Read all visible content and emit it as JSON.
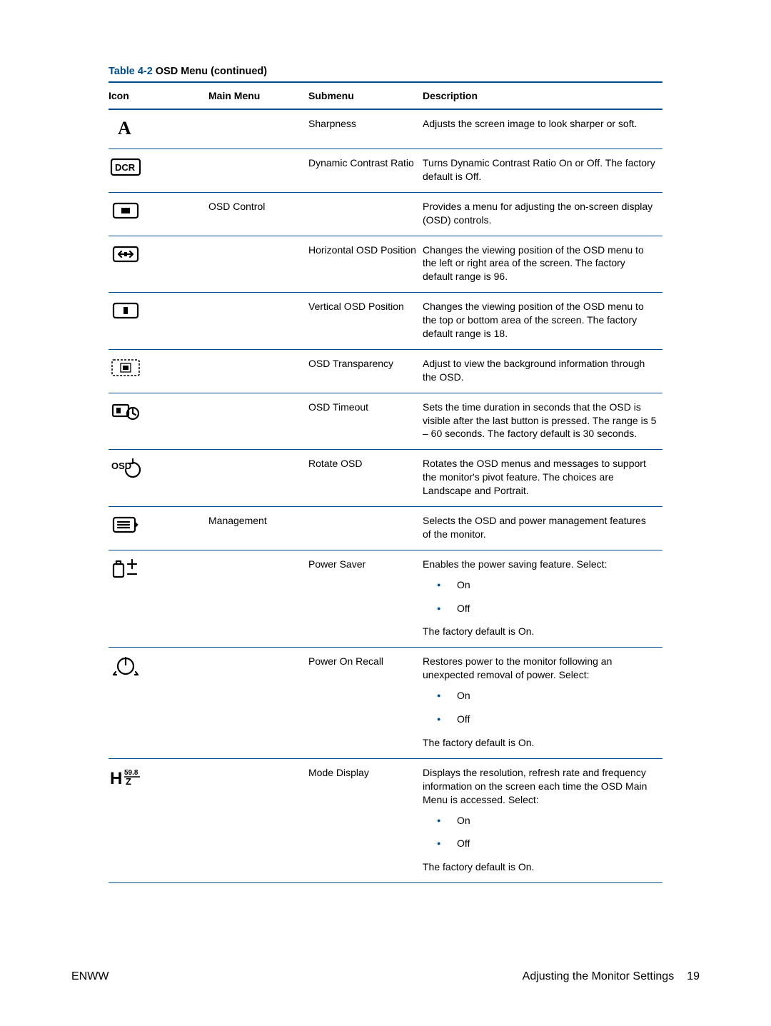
{
  "caption_prefix": "Table 4-2",
  "caption_title": "  OSD Menu (continued)",
  "colors": {
    "accent": "#004b8d"
  },
  "headers": {
    "icon": "Icon",
    "main": "Main Menu",
    "sub": "Submenu",
    "desc": "Description"
  },
  "rows": [
    {
      "icon_svg": "letterA",
      "main": "",
      "sub": "Sharpness",
      "desc": {
        "paras": [
          "Adjusts the screen image to look sharper or soft."
        ]
      }
    },
    {
      "icon_svg": "dcr",
      "main": "",
      "sub": "Dynamic Contrast Ratio",
      "desc": {
        "paras": [
          "Turns Dynamic Contrast Ratio On or Off. The factory default is Off."
        ]
      }
    },
    {
      "icon_svg": "osdControl",
      "main": "OSD Control",
      "sub": "",
      "desc": {
        "paras": [
          "Provides a menu for adjusting the on-screen display (OSD) controls."
        ]
      }
    },
    {
      "icon_svg": "hPos",
      "main": "",
      "sub": "Horizontal OSD Position",
      "desc": {
        "paras": [
          "Changes the viewing position of the OSD menu to the left or right area of the screen. The factory default range is 96."
        ]
      }
    },
    {
      "icon_svg": "vPos",
      "main": "",
      "sub": "Vertical OSD Position",
      "desc": {
        "paras": [
          "Changes the viewing position of the OSD menu to the top or bottom area of the screen. The factory default range is 18."
        ]
      }
    },
    {
      "icon_svg": "transparency",
      "main": "",
      "sub": "OSD Transparency",
      "desc": {
        "paras": [
          "Adjust to view the background information through the OSD."
        ]
      }
    },
    {
      "icon_svg": "timeout",
      "main": "",
      "sub": "OSD Timeout",
      "desc": {
        "paras": [
          "Sets the time duration in seconds that the OSD is visible after the last button is pressed. The range is 5 – 60 seconds. The factory default is 30 seconds."
        ]
      }
    },
    {
      "icon_svg": "rotate",
      "main": "",
      "sub": "Rotate OSD",
      "desc": {
        "paras": [
          "Rotates the OSD menus and messages to support the monitor's pivot feature. The choices are Landscape and Portrait."
        ]
      }
    },
    {
      "icon_svg": "management",
      "main": "Management",
      "sub": "",
      "desc": {
        "paras": [
          "Selects the OSD and power management features of the monitor."
        ]
      }
    },
    {
      "icon_svg": "powerSaver",
      "main": "",
      "sub": "Power Saver",
      "desc": {
        "paras": [
          "Enables the power saving feature. Select:"
        ],
        "bullets": [
          "On",
          "Off"
        ],
        "tail": "The factory default is On."
      }
    },
    {
      "icon_svg": "powerOnRecall",
      "main": "",
      "sub": "Power On Recall",
      "desc": {
        "paras": [
          "Restores power to the monitor following an unexpected removal of power. Select:"
        ],
        "bullets": [
          "On",
          "Off"
        ],
        "tail": "The factory default is On."
      }
    },
    {
      "icon_svg": "modeDisplay",
      "main": "",
      "sub": "Mode Display",
      "desc": {
        "paras": [
          "Displays the resolution, refresh rate and frequency information on the screen each time the OSD Main Menu is accessed. Select:"
        ],
        "bullets": [
          "On",
          "Off"
        ],
        "tail": "The factory default is On."
      }
    }
  ],
  "footer": {
    "left": "ENWW",
    "right_text": "Adjusting the Monitor Settings",
    "page": "19"
  }
}
